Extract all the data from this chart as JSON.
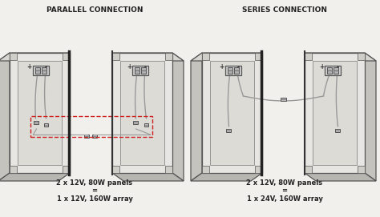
{
  "bg_color": "#f2f0ed",
  "panel_face_color": "#e8e6e2",
  "panel_side_color": "#c8c6c0",
  "panel_edge_color": "#555555",
  "panel_corner_color": "#d5d3ce",
  "center_edge_color": "#1a1a1a",
  "title_left": "PARALLEL CONNECTION",
  "title_right": "SERIES CONNECTION",
  "title_fontsize": 6.5,
  "label_left_line1": "2 x 12V, 80W panels",
  "label_left_line2": "=",
  "label_left_line3": "1 x 12V, 160W array",
  "label_right_line1": "2 x 12V, 80W panels",
  "label_right_line2": "=",
  "label_right_line3": "1 x 24V, 160W array",
  "label_fontsize": 6.0,
  "wire_color": "#999999",
  "connector_color": "#aaaaaa",
  "dashed_box_color": "#cc2222",
  "plus_minus_fontsize": 5.5,
  "junction_color": "#d0d0d0",
  "junction_inner": "#888888"
}
